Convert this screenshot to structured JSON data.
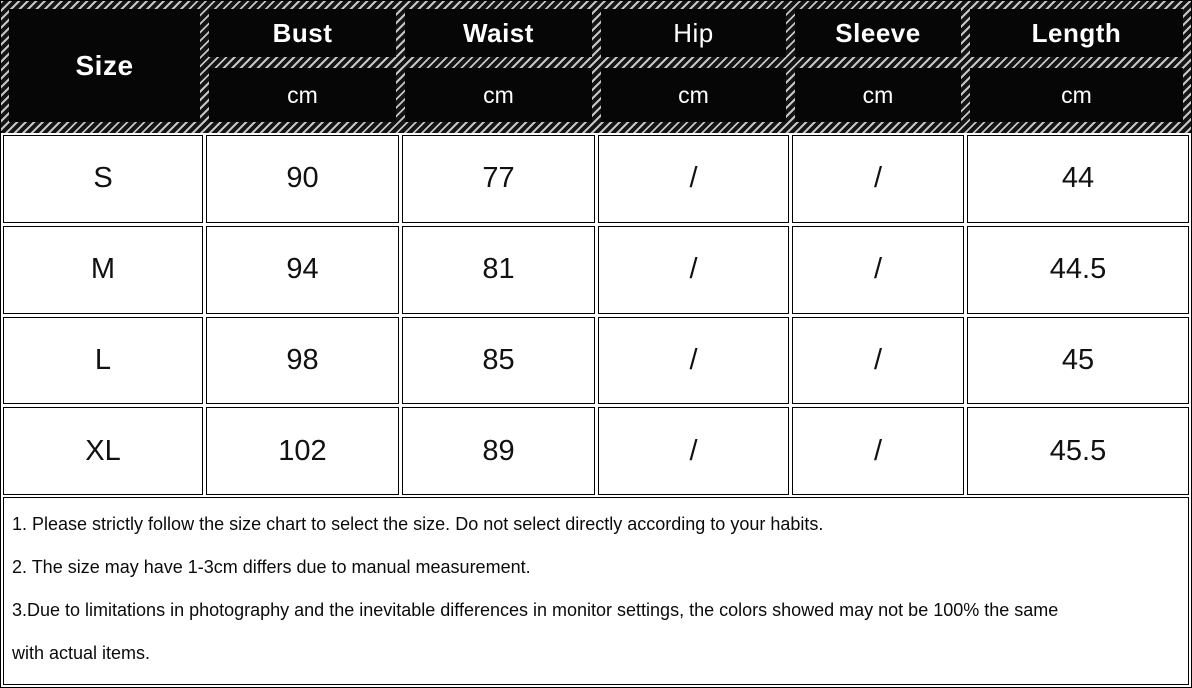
{
  "chart_data": {
    "type": "table",
    "corner_label": "Size",
    "measure_columns": [
      "Bust",
      "Waist",
      "Hip",
      "Sleeve",
      "Length"
    ],
    "unit_labels": [
      "cm",
      "cm",
      "cm",
      "cm",
      "cm"
    ],
    "row_labels": [
      "S",
      "M",
      "L",
      "XL"
    ],
    "rows": [
      [
        "S",
        "90",
        "77",
        "/",
        "/",
        "44"
      ],
      [
        "M",
        "94",
        "81",
        "/",
        "/",
        "44.5"
      ],
      [
        "L",
        "98",
        "85",
        "/",
        "/",
        "45"
      ],
      [
        "XL",
        "102",
        "89",
        "/",
        "/",
        "45.5"
      ]
    ]
  },
  "notes": {
    "lines": [
      "1. Please strictly follow the size chart to select the size. Do not select directly according to your habits.",
      "2. The size may have 1-3cm differs due to manual measurement.",
      "3.Due to limitations in photography and the inevitable differences in monitor settings, the colors showed may not be 100% the same",
      "with actual items."
    ]
  },
  "colors": {
    "header_cell_bg": "#060606",
    "header_text": "#ffffff",
    "hatch_light": "#c6c6c6",
    "hatch_dark": "#141414",
    "cell_border": "#000000",
    "body_bg": "#ffffff",
    "body_text": "#111111"
  }
}
